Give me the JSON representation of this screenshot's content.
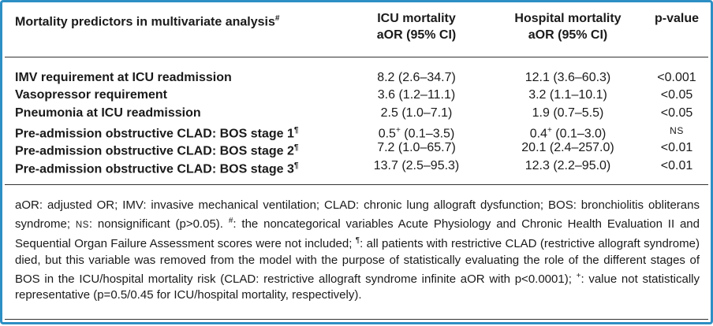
{
  "table": {
    "headers": {
      "predictor": "Mortality predictors in multivariate analysis",
      "predictor_mark": "#",
      "icu_line1": "ICU mortality",
      "icu_line2": "aOR (95% CI)",
      "hosp_line1": "Hospital mortality",
      "hosp_line2": "aOR (95% CI)",
      "pvalue": "p-value"
    },
    "rows": [
      {
        "label": "IMV requirement at ICU readmission",
        "mark": "",
        "icu": "8.2 (2.6–34.7)",
        "icu_sup": "",
        "icu_ci": "",
        "hosp": "12.1 (3.6–60.3)",
        "hosp_sup": "",
        "hosp_ci": "",
        "p": "<0.001"
      },
      {
        "label": "Vasopressor requirement",
        "mark": "",
        "icu": "3.6 (1.2–11.1)",
        "icu_sup": "",
        "icu_ci": "",
        "hosp": "3.2 (1.1–10.1)",
        "hosp_sup": "",
        "hosp_ci": "",
        "p": "<0.05"
      },
      {
        "label": "Pneumonia at ICU readmission",
        "mark": "",
        "icu": "2.5 (1.0–7.1)",
        "icu_sup": "",
        "icu_ci": "",
        "hosp": "1.9 (0.7–5.5)",
        "hosp_sup": "",
        "hosp_ci": "",
        "p": "<0.05"
      },
      {
        "label": "Pre-admission obstructive CLAD: BOS stage 1",
        "mark": "¶",
        "icu": "0.5",
        "icu_sup": "+",
        "icu_ci": " (0.1–3.5)",
        "hosp": "0.4",
        "hosp_sup": "+",
        "hosp_ci": " (0.1–3.0)",
        "p": "NS"
      },
      {
        "label": "Pre-admission obstructive CLAD: BOS stage 2",
        "mark": "¶",
        "icu": "7.2 (1.0–65.7)",
        "icu_sup": "",
        "icu_ci": "",
        "hosp": "20.1 (2.4–257.0)",
        "hosp_sup": "",
        "hosp_ci": "",
        "p": "<0.01"
      },
      {
        "label": "Pre-admission obstructive CLAD: BOS stage 3",
        "mark": "¶",
        "icu": "13.7 (2.5–95.3)",
        "icu_sup": "",
        "icu_ci": "",
        "hosp": "12.3 (2.2–95.0)",
        "hosp_sup": "",
        "hosp_ci": "",
        "p": "<0.01"
      }
    ]
  },
  "footnote": {
    "t1": "aOR: adjusted OR; IMV: invasive mechanical ventilation; CLAD: chronic lung allograft dysfunction; BOS: bronchiolitis obliterans syndrome; ",
    "ns_abbr": "NS",
    "t2": ": nonsignificant (p>0.05). ",
    "hash": "#",
    "t3": ": the noncategorical variables Acute Physiology and Chronic Health Evaluation II and Sequential Organ Failure Assessment scores were not included; ",
    "pilcrow": "¶",
    "t4": ": all patients with restrictive CLAD (restrictive allograft syndrome) died, but this variable was removed from the model with the purpose of statistically evaluating the role of the different stages of BOS in the ICU/hospital mortality risk (CLAD: restrictive allograft syndrome infinite aOR with p<0.0001); ",
    "plus": "+",
    "t5": ": value not statistically representative (p=0.5/0.45 for ICU/hospital mortality, respectively)."
  },
  "colors": {
    "border": "#2d8fc4",
    "rule": "#333333",
    "text": "#1a1a1a"
  }
}
